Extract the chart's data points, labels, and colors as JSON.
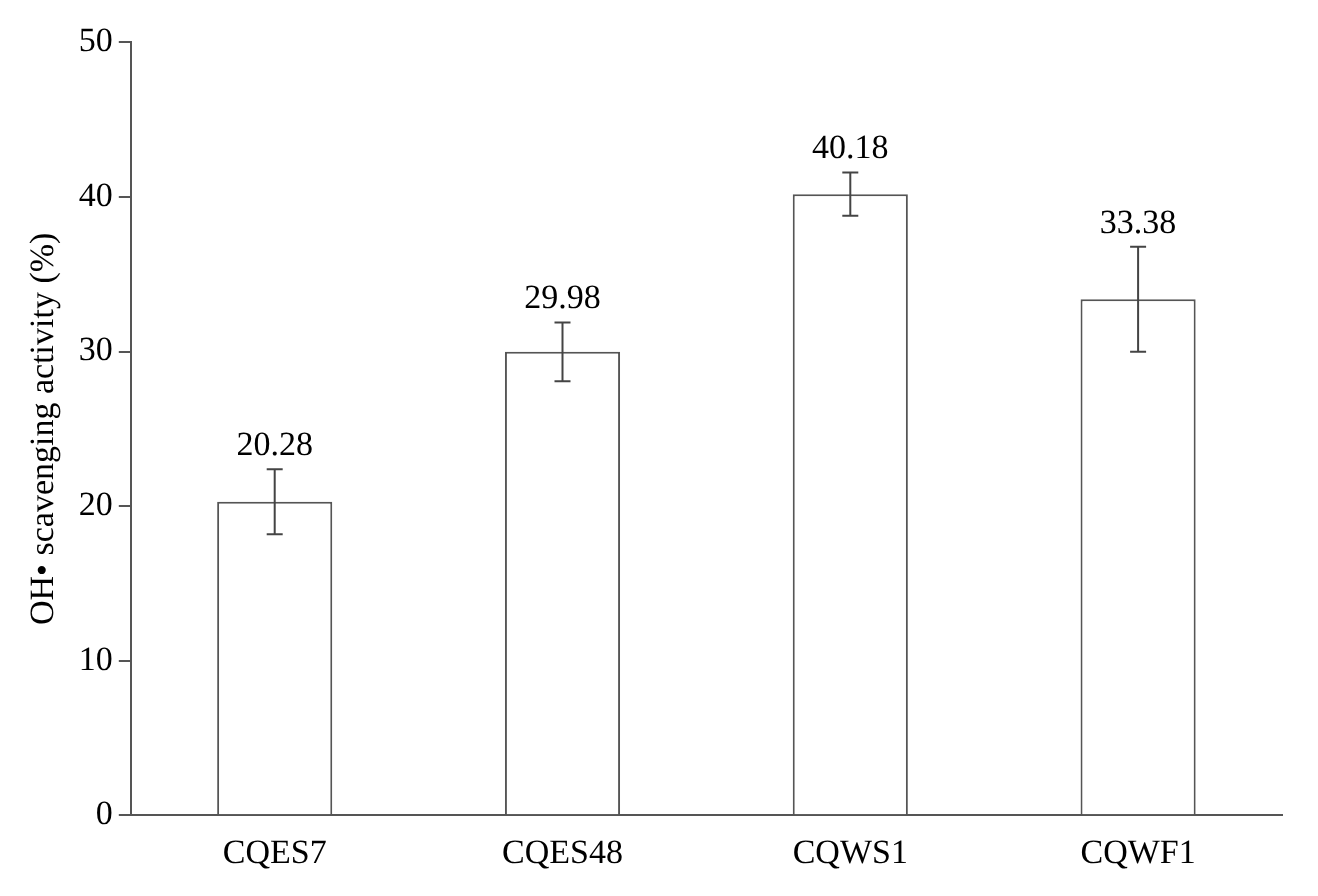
{
  "chart_data": {
    "type": "bar",
    "ylabel": "OH• scavenging activity (%)",
    "categories": [
      "CQES7",
      "CQES48",
      "CQWS1",
      "CQWF1"
    ],
    "values": [
      20.28,
      29.98,
      40.18,
      33.38
    ],
    "errors": [
      2.1,
      1.9,
      1.4,
      3.4
    ],
    "color": "#ffffff",
    "data_labels": true,
    "grid": false,
    "legend": false,
    "ylim": [
      0,
      50
    ],
    "yticks": [
      0,
      10,
      20,
      30,
      40,
      50
    ]
  }
}
